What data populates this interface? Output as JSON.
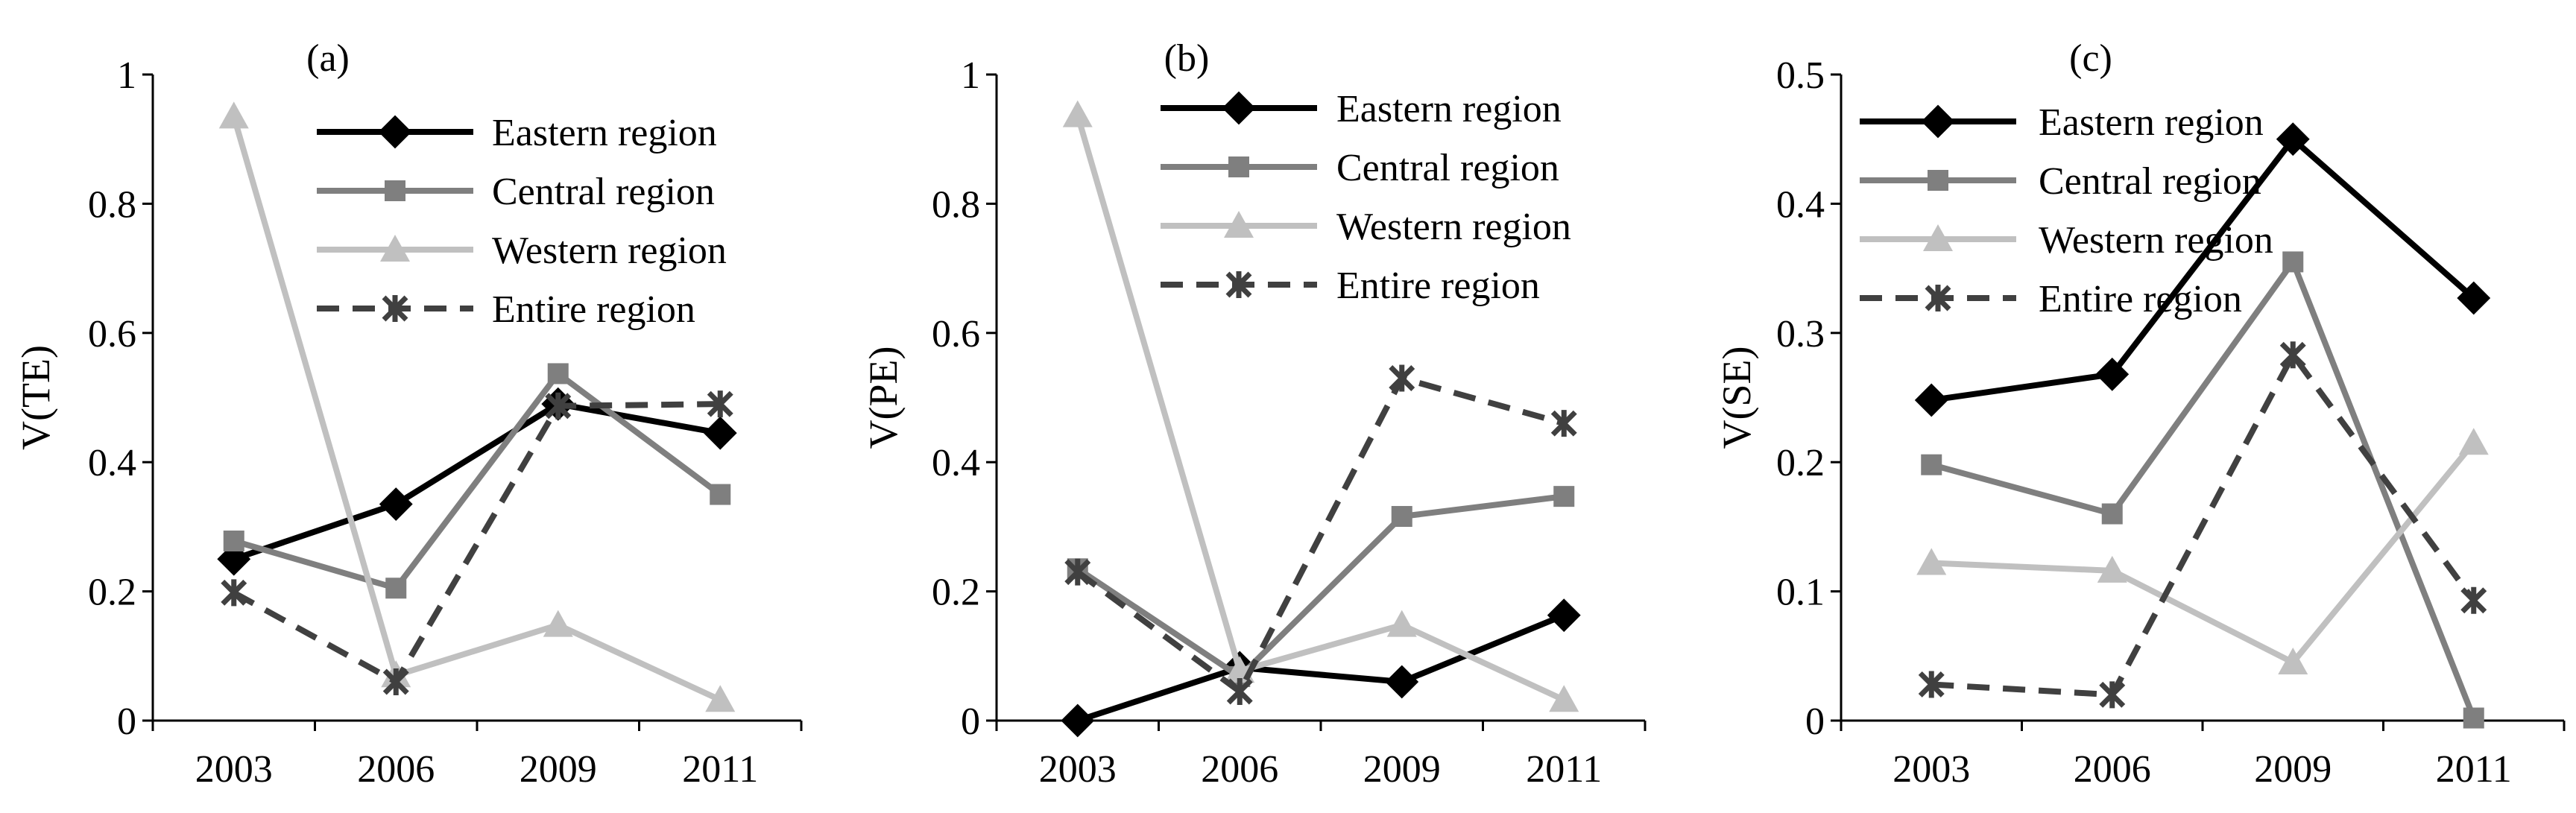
{
  "colors": {
    "eastern": "#000000",
    "central": "#7f7f7f",
    "western": "#c0c0c0",
    "entire": "#404040",
    "axis": "#000000",
    "background": "#ffffff"
  },
  "chart_data": [
    {
      "type": "line",
      "title": "(a)",
      "xlabel": "",
      "ylabel": "V(TE)",
      "categories": [
        "2003",
        "2006",
        "2009",
        "2011"
      ],
      "ylim": [
        0,
        1
      ],
      "yticks": [
        0,
        0.2,
        0.4,
        0.6,
        0.8,
        1
      ],
      "ytick_labels": [
        "0",
        "0.2",
        "0.4",
        "0.6",
        "0.8",
        "1"
      ],
      "grid": false,
      "legend_position": "top-right",
      "series": [
        {
          "name": "Eastern region",
          "values": [
            0.25,
            0.335,
            0.49,
            0.445
          ],
          "color": "#000000",
          "marker": "diamond",
          "dash": "solid"
        },
        {
          "name": "Central region",
          "values": [
            0.278,
            0.205,
            0.537,
            0.35
          ],
          "color": "#7f7f7f",
          "marker": "square",
          "dash": "solid"
        },
        {
          "name": "Western region",
          "values": [
            0.935,
            0.07,
            0.148,
            0.032
          ],
          "color": "#c0c0c0",
          "marker": "triangle",
          "dash": "solid"
        },
        {
          "name": "Entire region",
          "values": [
            0.198,
            0.06,
            0.487,
            0.49
          ],
          "color": "#404040",
          "marker": "star",
          "dash": "dashed"
        }
      ]
    },
    {
      "type": "line",
      "title": "(b)",
      "xlabel": "",
      "ylabel": "V(PE)",
      "categories": [
        "2003",
        "2006",
        "2009",
        "2011"
      ],
      "ylim": [
        0,
        1
      ],
      "yticks": [
        0,
        0.2,
        0.4,
        0.6,
        0.8,
        1
      ],
      "ytick_labels": [
        "0",
        "0.2",
        "0.4",
        "0.6",
        "0.8",
        "1"
      ],
      "grid": false,
      "legend_position": "top-right",
      "series": [
        {
          "name": "Eastern region",
          "values": [
            0.0,
            0.082,
            0.06,
            0.163
          ],
          "color": "#000000",
          "marker": "diamond",
          "dash": "solid"
        },
        {
          "name": "Central region",
          "values": [
            0.235,
            0.068,
            0.316,
            0.347
          ],
          "color": "#7f7f7f",
          "marker": "square",
          "dash": "solid"
        },
        {
          "name": "Western region",
          "values": [
            0.937,
            0.077,
            0.148,
            0.032
          ],
          "color": "#c0c0c0",
          "marker": "triangle",
          "dash": "solid"
        },
        {
          "name": "Entire region",
          "values": [
            0.23,
            0.045,
            0.53,
            0.46
          ],
          "color": "#404040",
          "marker": "star",
          "dash": "dashed"
        }
      ]
    },
    {
      "type": "line",
      "title": "(c)",
      "xlabel": "",
      "ylabel": "V(SE)",
      "categories": [
        "2003",
        "2006",
        "2009",
        "2011"
      ],
      "ylim": [
        0,
        0.5
      ],
      "yticks": [
        0,
        0.1,
        0.2,
        0.3,
        0.4,
        0.5
      ],
      "ytick_labels": [
        "0",
        "0.1",
        "0.2",
        "0.3",
        "0.4",
        "0.5"
      ],
      "grid": false,
      "legend_position": "top-left",
      "series": [
        {
          "name": "Eastern region",
          "values": [
            0.248,
            0.268,
            0.45,
            0.327
          ],
          "color": "#000000",
          "marker": "diamond",
          "dash": "solid"
        },
        {
          "name": "Central region",
          "values": [
            0.198,
            0.16,
            0.355,
            0.002
          ],
          "color": "#7f7f7f",
          "marker": "square",
          "dash": "solid"
        },
        {
          "name": "Western region",
          "values": [
            0.122,
            0.116,
            0.045,
            0.215
          ],
          "color": "#c0c0c0",
          "marker": "triangle",
          "dash": "solid"
        },
        {
          "name": "Entire region",
          "values": [
            0.028,
            0.02,
            0.283,
            0.093
          ],
          "color": "#404040",
          "marker": "star",
          "dash": "dashed"
        }
      ]
    }
  ]
}
